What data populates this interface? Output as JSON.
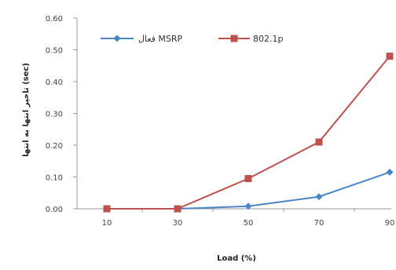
{
  "chart_data": {
    "type": "line",
    "x": [
      10,
      30,
      50,
      70,
      90
    ],
    "x_tick_labels": [
      "10",
      "30",
      "50",
      "70",
      "90"
    ],
    "ylim": [
      0,
      0.6
    ],
    "y_ticks": [
      "0.00",
      "0.10",
      "0.20",
      "0.30",
      "0.40",
      "0.50",
      "0.60"
    ],
    "xlabel": "Load (%)",
    "ylabel": "تاخیر انتها به انتها (sec)",
    "grid": false,
    "legend_position": "top",
    "series": [
      {
        "name": "فعال MSRP",
        "color": "#4a86c8",
        "marker": "diamond",
        "values": [
          0.0,
          0.0,
          0.008,
          0.038,
          0.115
        ]
      },
      {
        "name": "802.1p",
        "color": "#c0504d",
        "marker": "square",
        "values": [
          0.0,
          0.0,
          0.095,
          0.21,
          0.48
        ]
      }
    ]
  }
}
